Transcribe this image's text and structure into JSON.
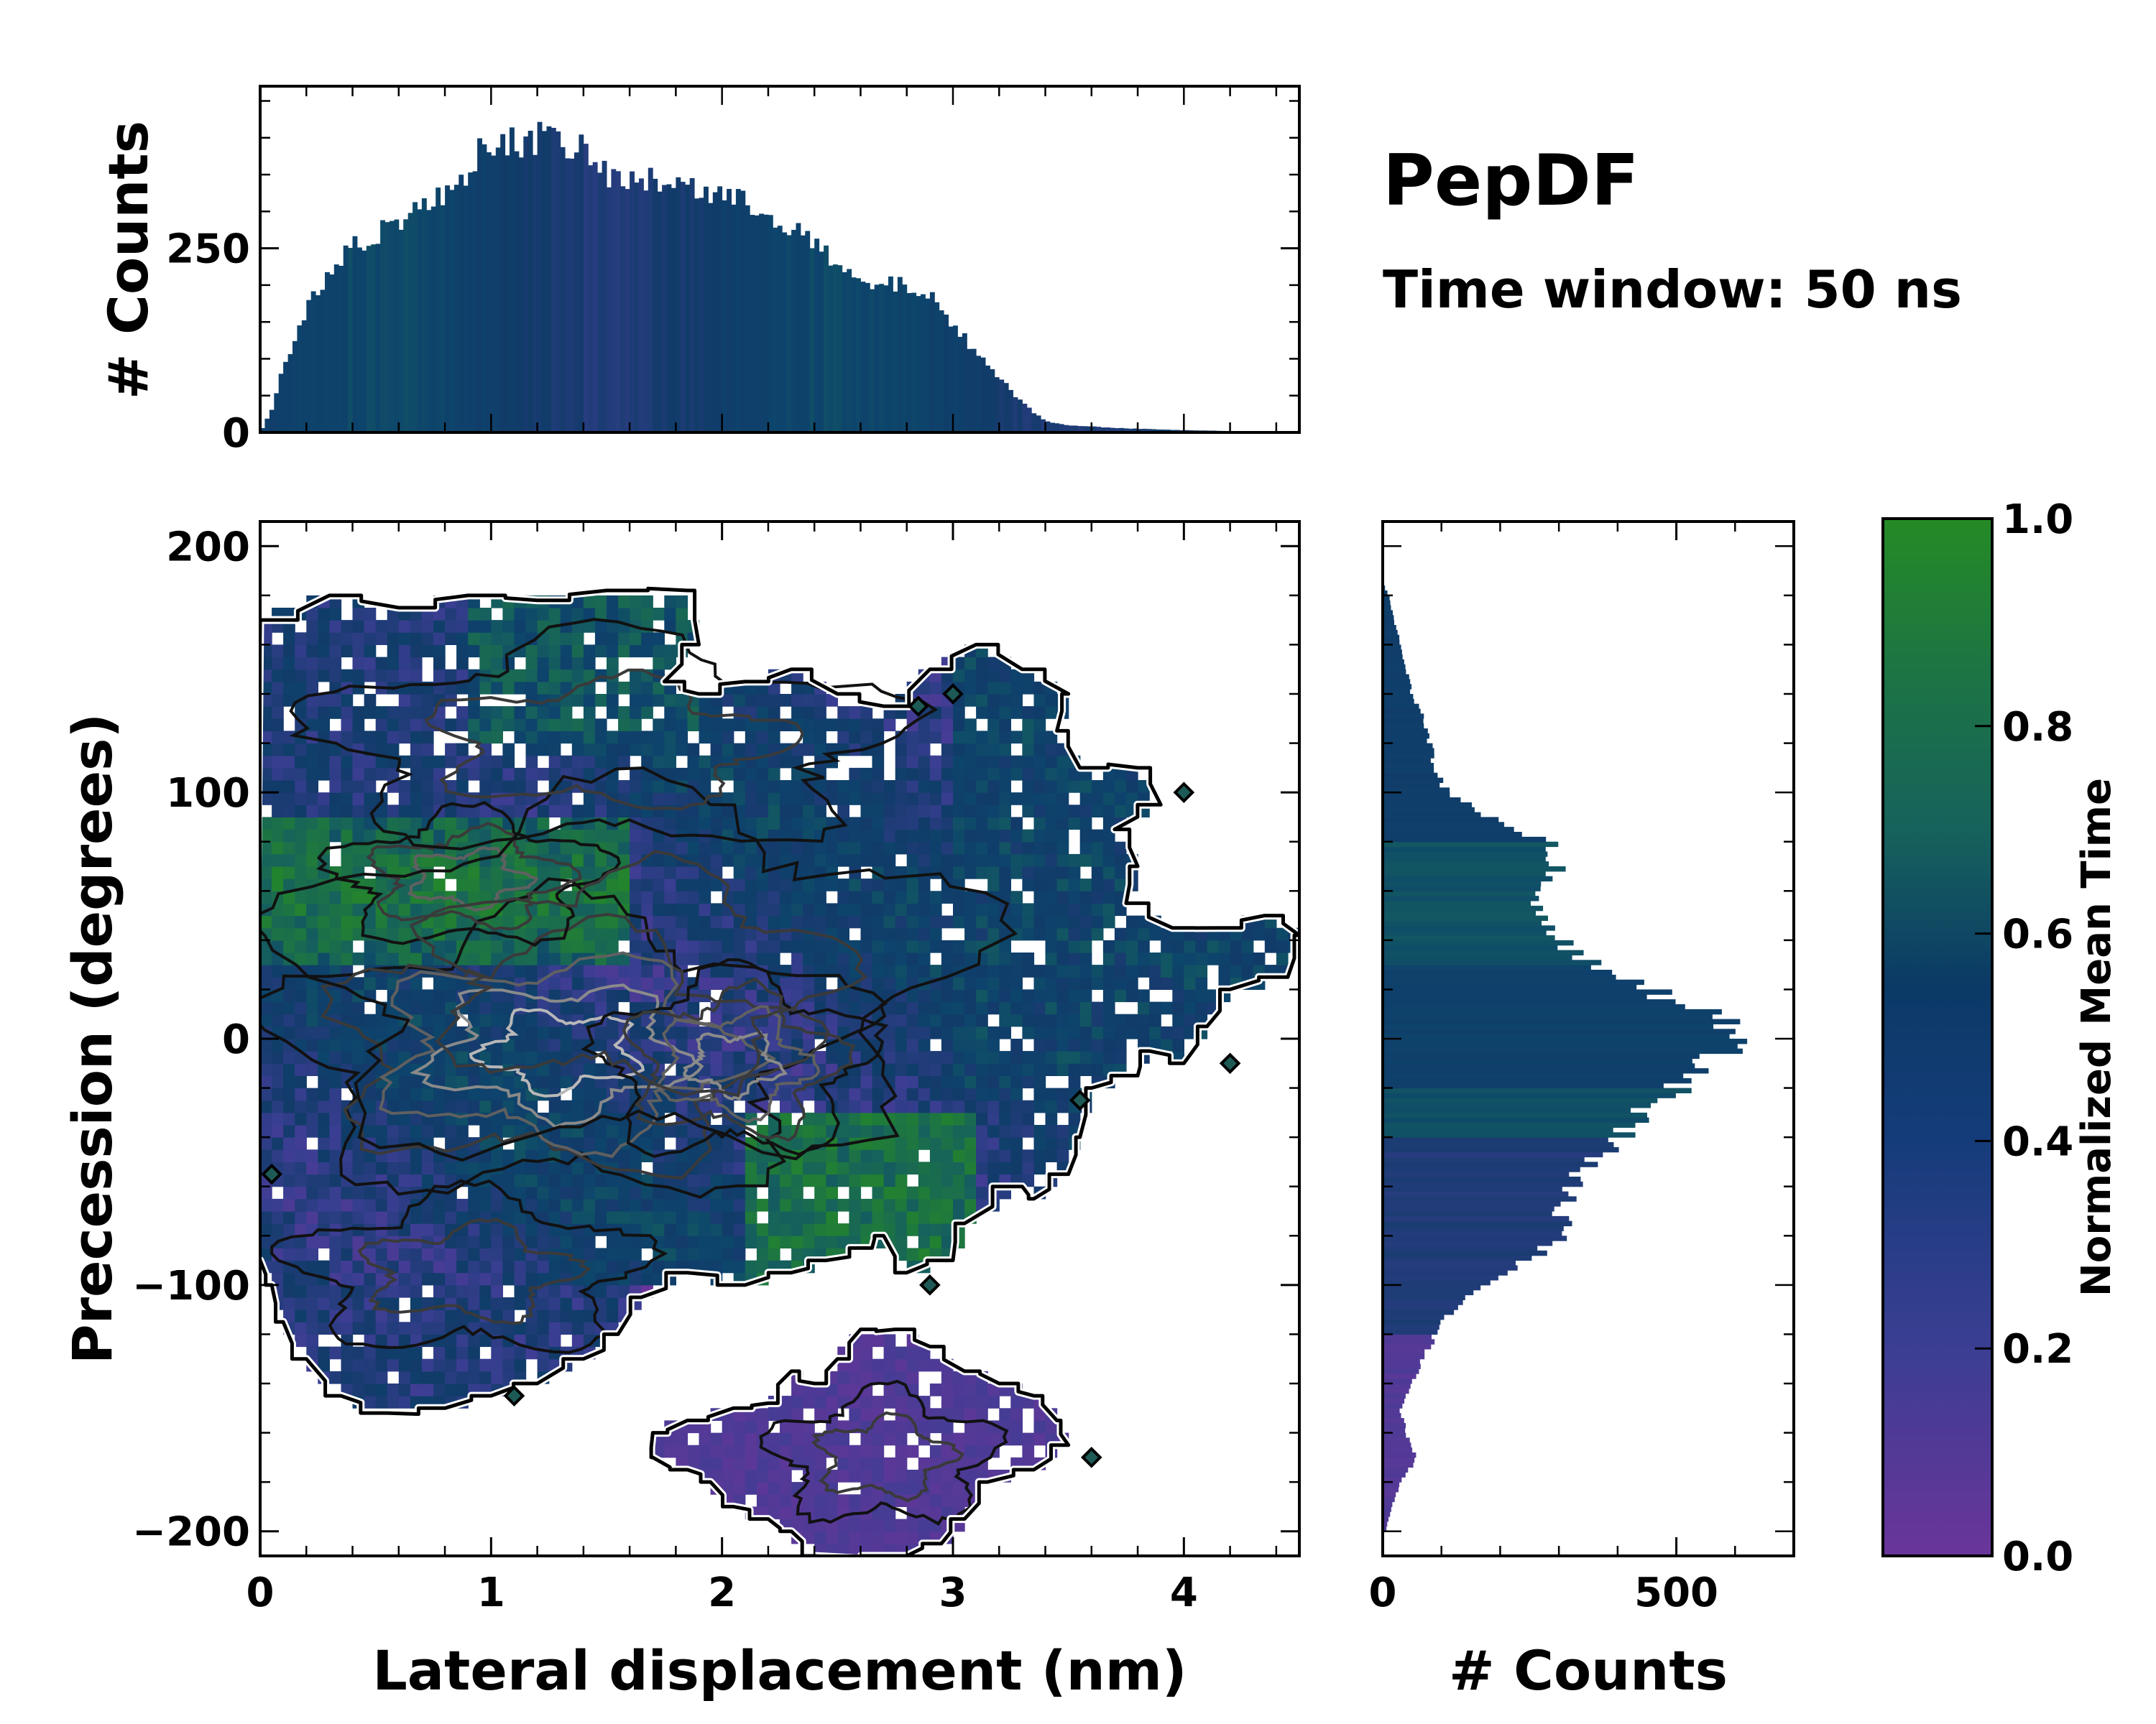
{
  "chart_data": [
    {
      "type": "bar",
      "role": "top-marginal-histogram",
      "ylabel": "# Counts",
      "xlim": [
        0,
        4.5
      ],
      "ylim": [
        0,
        470
      ],
      "yticks": [
        0,
        250
      ],
      "bin_width": 0.02,
      "profile_x": [
        0.0,
        0.05,
        0.1,
        0.2,
        0.3,
        0.4,
        0.5,
        0.6,
        0.7,
        0.8,
        0.9,
        1.0,
        1.1,
        1.2,
        1.3,
        1.4,
        1.5,
        1.6,
        1.7,
        1.8,
        1.9,
        2.0,
        2.1,
        2.2,
        2.3,
        2.4,
        2.5,
        2.6,
        2.7,
        2.8,
        2.9,
        3.0,
        3.1,
        3.2,
        3.3,
        3.4,
        3.5,
        3.6,
        3.7,
        3.8,
        3.9,
        4.0,
        4.2,
        4.5
      ],
      "profile_y": [
        0,
        30,
        90,
        165,
        220,
        250,
        270,
        290,
        305,
        320,
        360,
        395,
        395,
        400,
        395,
        380,
        350,
        340,
        340,
        345,
        330,
        320,
        310,
        300,
        280,
        255,
        225,
        200,
        200,
        200,
        185,
        145,
        110,
        75,
        40,
        15,
        10,
        8,
        6,
        5,
        4,
        3,
        2,
        0
      ]
    },
    {
      "type": "heatmap",
      "role": "main-2d-histogram",
      "xlabel": "Lateral displacement (nm)",
      "ylabel": "Precession (degrees)",
      "xlim": [
        0,
        4.5
      ],
      "ylim": [
        -210,
        210
      ],
      "xticks": [
        0,
        1,
        2,
        3,
        4
      ],
      "xtick_labels": [
        "0",
        "1",
        "2",
        "3",
        "4"
      ],
      "yticks": [
        -200,
        -100,
        0,
        100,
        200
      ],
      "ytick_labels": [
        "−200",
        "−100",
        "0",
        "100",
        "200"
      ],
      "cell_size": [
        0.05,
        5
      ],
      "color_encodes": "Normalized Mean Time (0 to 1)",
      "density_contours": "black, gray and white contour lines over dense regions",
      "upper_region_outline": [
        [
          0.0,
          170
        ],
        [
          0.3,
          180
        ],
        [
          0.6,
          175
        ],
        [
          0.9,
          180
        ],
        [
          1.2,
          178
        ],
        [
          1.5,
          182
        ],
        [
          1.85,
          182
        ],
        [
          1.9,
          160
        ],
        [
          1.75,
          145
        ],
        [
          1.9,
          140
        ],
        [
          2.1,
          145
        ],
        [
          2.3,
          150
        ],
        [
          2.5,
          140
        ],
        [
          2.7,
          135
        ],
        [
          2.9,
          150
        ],
        [
          3.1,
          160
        ],
        [
          3.3,
          150
        ],
        [
          3.5,
          140
        ],
        [
          3.45,
          125
        ],
        [
          3.55,
          110
        ],
        [
          3.8,
          110
        ],
        [
          3.9,
          95
        ],
        [
          3.7,
          85
        ],
        [
          3.8,
          70
        ],
        [
          3.75,
          55
        ],
        [
          3.95,
          45
        ],
        [
          4.15,
          45
        ],
        [
          4.35,
          50
        ],
        [
          4.5,
          42
        ],
        [
          4.45,
          25
        ],
        [
          4.2,
          20
        ],
        [
          4.1,
          5
        ],
        [
          4.0,
          -10
        ],
        [
          3.85,
          -5
        ],
        [
          3.8,
          -15
        ],
        [
          3.6,
          -20
        ],
        [
          3.55,
          -40
        ],
        [
          3.5,
          -55
        ],
        [
          3.35,
          -65
        ],
        [
          3.3,
          -60
        ],
        [
          3.05,
          -75
        ],
        [
          3.0,
          -90
        ],
        [
          2.8,
          -95
        ],
        [
          2.7,
          -80
        ],
        [
          2.65,
          -85
        ],
        [
          2.45,
          -90
        ],
        [
          2.3,
          -95
        ],
        [
          2.1,
          -100
        ],
        [
          1.85,
          -95
        ],
        [
          1.65,
          -105
        ],
        [
          1.55,
          -120
        ],
        [
          1.4,
          -130
        ],
        [
          1.2,
          -140
        ],
        [
          1.0,
          -145
        ],
        [
          0.8,
          -150
        ],
        [
          0.55,
          -152
        ],
        [
          0.35,
          -145
        ],
        [
          0.2,
          -130
        ],
        [
          0.1,
          -115
        ],
        [
          0.05,
          -100
        ],
        [
          0.0,
          -90
        ]
      ],
      "lower_region_outline": [
        [
          1.7,
          -160
        ],
        [
          1.85,
          -155
        ],
        [
          2.05,
          -150
        ],
        [
          2.2,
          -148
        ],
        [
          2.3,
          -135
        ],
        [
          2.4,
          -140
        ],
        [
          2.5,
          -130
        ],
        [
          2.6,
          -118
        ],
        [
          2.75,
          -118
        ],
        [
          2.9,
          -125
        ],
        [
          3.05,
          -135
        ],
        [
          3.2,
          -140
        ],
        [
          3.35,
          -145
        ],
        [
          3.45,
          -155
        ],
        [
          3.5,
          -165
        ],
        [
          3.35,
          -175
        ],
        [
          3.15,
          -180
        ],
        [
          3.05,
          -195
        ],
        [
          2.95,
          -205
        ],
        [
          2.8,
          -210
        ],
        [
          2.4,
          -210
        ],
        [
          2.3,
          -200
        ],
        [
          2.2,
          -195
        ],
        [
          2.05,
          -190
        ],
        [
          1.95,
          -180
        ],
        [
          1.85,
          -175
        ],
        [
          1.7,
          -170
        ]
      ]
    },
    {
      "type": "bar",
      "role": "right-marginal-histogram",
      "orientation": "horizontal",
      "xlabel": "# Counts",
      "xlim": [
        0,
        700
      ],
      "xticks": [
        0,
        500
      ],
      "ylim": [
        -210,
        210
      ],
      "bin_width": 2,
      "profile_y": [
        -200,
        -190,
        -180,
        -170,
        -160,
        -150,
        -140,
        -130,
        -120,
        -110,
        -100,
        -90,
        -80,
        -70,
        -60,
        -50,
        -40,
        -30,
        -20,
        -10,
        0,
        10,
        20,
        30,
        40,
        50,
        60,
        70,
        80,
        90,
        100,
        110,
        120,
        130,
        140,
        150,
        160,
        170,
        180,
        185
      ],
      "profile_x": [
        5,
        15,
        30,
        60,
        40,
        30,
        50,
        70,
        90,
        120,
        180,
        250,
        300,
        310,
        330,
        350,
        410,
        440,
        500,
        560,
        620,
        560,
        450,
        360,
        300,
        270,
        270,
        300,
        280,
        180,
        110,
        90,
        80,
        70,
        50,
        40,
        30,
        20,
        10,
        0
      ]
    },
    {
      "type": "colorbar",
      "label": "Normalized Mean Time",
      "range": [
        0.0,
        1.0
      ],
      "ticks": [
        "0.0",
        "0.2",
        "0.4",
        "0.6",
        "0.8",
        "1.0"
      ],
      "colors": [
        "#6a359a",
        "#3b3e93",
        "#113b69",
        "#0d446c",
        "#16625c",
        "#258a25"
      ]
    }
  ],
  "annotations": {
    "title": "PepDF",
    "subtitle": "Time window: 50 ns"
  }
}
